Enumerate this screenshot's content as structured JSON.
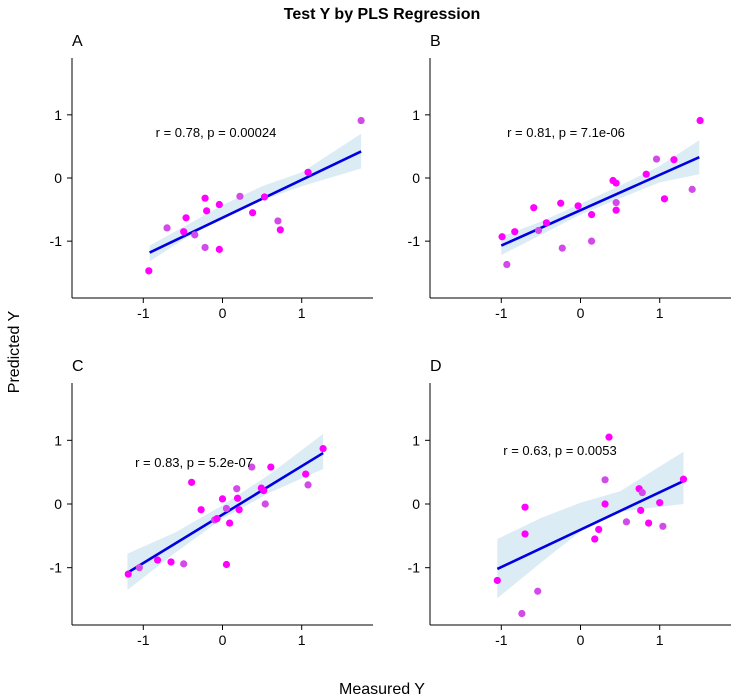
{
  "title": "Test Y by PLS Regression",
  "xlabel": "Measured Y",
  "ylabel": "Predicted Y",
  "colors": {
    "point": "#ff00ff",
    "point_alt": "#d24ae8",
    "fit_line": "#0000e0",
    "ci_band": "#cfe6f2"
  },
  "chart_data": [
    {
      "type": "scatter",
      "panel": "A",
      "annotation": "r = 0.78, p = 0.00024",
      "xlim": [
        -1.9,
        1.9
      ],
      "ylim": [
        -1.9,
        1.9
      ],
      "x_ticks": [
        -1,
        0,
        1
      ],
      "y_ticks": [
        -1,
        0,
        1
      ],
      "fit": {
        "x0": -0.92,
        "y0": -1.18,
        "x1": 1.75,
        "y1": 0.42
      },
      "ci": [
        [
          -0.92,
          -1.07,
          -1.32
        ],
        [
          -0.5,
          -0.78,
          -0.98
        ],
        [
          0.0,
          -0.43,
          -0.63
        ],
        [
          0.5,
          -0.13,
          -0.35
        ],
        [
          1.0,
          0.09,
          -0.13
        ],
        [
          1.75,
          0.7,
          0.15
        ]
      ],
      "points": [
        {
          "x": -0.93,
          "y": -1.47
        },
        {
          "x": -0.7,
          "y": -0.79
        },
        {
          "x": -0.49,
          "y": -0.85
        },
        {
          "x": -0.46,
          "y": -0.63
        },
        {
          "x": -0.35,
          "y": -0.9
        },
        {
          "x": -0.22,
          "y": -0.32
        },
        {
          "x": -0.2,
          "y": -0.52
        },
        {
          "x": -0.22,
          "y": -1.1
        },
        {
          "x": -0.04,
          "y": -0.42
        },
        {
          "x": -0.04,
          "y": -1.13
        },
        {
          "x": 0.22,
          "y": -0.29
        },
        {
          "x": 0.38,
          "y": -0.55
        },
        {
          "x": 0.53,
          "y": -0.3
        },
        {
          "x": 0.7,
          "y": -0.68
        },
        {
          "x": 0.73,
          "y": -0.82
        },
        {
          "x": 1.08,
          "y": 0.09
        },
        {
          "x": 1.75,
          "y": 0.91
        }
      ]
    },
    {
      "type": "scatter",
      "panel": "B",
      "annotation": "r = 0.81, p = 7.1e-06",
      "xlim": [
        -1.9,
        1.9
      ],
      "ylim": [
        -1.9,
        1.9
      ],
      "x_ticks": [
        -1,
        0,
        1
      ],
      "y_ticks": [
        -1,
        0,
        1
      ],
      "fit": {
        "x0": -1.0,
        "y0": -1.07,
        "x1": 1.5,
        "y1": 0.33
      },
      "ci": [
        [
          -1.0,
          -0.93,
          -1.22
        ],
        [
          -0.5,
          -0.69,
          -0.9
        ],
        [
          0.0,
          -0.41,
          -0.58
        ],
        [
          0.5,
          -0.12,
          -0.32
        ],
        [
          1.0,
          0.19,
          -0.07
        ],
        [
          1.5,
          0.6,
          0.06
        ]
      ],
      "points": [
        {
          "x": -0.99,
          "y": -0.93
        },
        {
          "x": -0.93,
          "y": -1.37
        },
        {
          "x": -0.83,
          "y": -0.85
        },
        {
          "x": -0.59,
          "y": -0.47
        },
        {
          "x": -0.53,
          "y": -0.83
        },
        {
          "x": -0.43,
          "y": -0.71
        },
        {
          "x": -0.25,
          "y": -0.4
        },
        {
          "x": -0.23,
          "y": -1.11
        },
        {
          "x": -0.03,
          "y": -0.44
        },
        {
          "x": 0.14,
          "y": -0.58
        },
        {
          "x": 0.14,
          "y": -1.0
        },
        {
          "x": 0.41,
          "y": -0.04
        },
        {
          "x": 0.45,
          "y": -0.08
        },
        {
          "x": 0.45,
          "y": -0.39
        },
        {
          "x": 0.45,
          "y": -0.51
        },
        {
          "x": 0.83,
          "y": 0.06
        },
        {
          "x": 0.96,
          "y": 0.3
        },
        {
          "x": 1.06,
          "y": -0.33
        },
        {
          "x": 1.18,
          "y": 0.29
        },
        {
          "x": 1.41,
          "y": -0.18
        },
        {
          "x": 1.51,
          "y": 0.91
        }
      ]
    },
    {
      "type": "scatter",
      "panel": "C",
      "annotation": "r = 0.83, p = 5.2e-07",
      "xlim": [
        -1.9,
        1.9
      ],
      "ylim": [
        -1.9,
        1.9
      ],
      "x_ticks": [
        -1,
        0,
        1
      ],
      "y_ticks": [
        -1,
        0,
        1
      ],
      "fit": {
        "x0": -1.2,
        "y0": -1.08,
        "x1": 1.27,
        "y1": 0.8
      },
      "ci": [
        [
          -1.2,
          -0.78,
          -1.35
        ],
        [
          -0.6,
          -0.45,
          -0.77
        ],
        [
          0.0,
          -0.02,
          -0.23
        ],
        [
          0.6,
          0.47,
          0.18
        ],
        [
          1.27,
          1.1,
          0.55
        ]
      ],
      "points": [
        {
          "x": -1.19,
          "y": -1.1
        },
        {
          "x": -1.05,
          "y": -1.0
        },
        {
          "x": -0.82,
          "y": -0.88
        },
        {
          "x": -0.65,
          "y": -0.91
        },
        {
          "x": -0.49,
          "y": -0.94
        },
        {
          "x": -0.39,
          "y": 0.34
        },
        {
          "x": -0.27,
          "y": -0.09
        },
        {
          "x": -0.1,
          "y": -0.25
        },
        {
          "x": -0.07,
          "y": -0.23
        },
        {
          "x": 0.0,
          "y": 0.08
        },
        {
          "x": 0.05,
          "y": -0.07
        },
        {
          "x": 0.05,
          "y": -0.95
        },
        {
          "x": 0.09,
          "y": -0.3
        },
        {
          "x": 0.18,
          "y": 0.24
        },
        {
          "x": 0.19,
          "y": 0.09
        },
        {
          "x": 0.21,
          "y": -0.09
        },
        {
          "x": 0.37,
          "y": 0.58
        },
        {
          "x": 0.49,
          "y": 0.25
        },
        {
          "x": 0.52,
          "y": 0.21
        },
        {
          "x": 0.54,
          "y": 0.0
        },
        {
          "x": 0.61,
          "y": 0.58
        },
        {
          "x": 1.05,
          "y": 0.47
        },
        {
          "x": 1.08,
          "y": 0.3
        },
        {
          "x": 1.27,
          "y": 0.87
        }
      ]
    },
    {
      "type": "scatter",
      "panel": "D",
      "annotation": "r = 0.63, p = 0.0053",
      "xlim": [
        -1.9,
        1.9
      ],
      "ylim": [
        -1.9,
        1.9
      ],
      "x_ticks": [
        -1,
        0,
        1
      ],
      "y_ticks": [
        -1,
        0,
        1
      ],
      "fit": {
        "x0": -1.05,
        "y0": -1.02,
        "x1": 1.3,
        "y1": 0.36
      },
      "ci": [
        [
          -1.05,
          -0.55,
          -1.48
        ],
        [
          -0.5,
          -0.22,
          -0.92
        ],
        [
          0.0,
          0.02,
          -0.43
        ],
        [
          0.5,
          0.2,
          -0.12
        ],
        [
          1.3,
          0.82,
          0.0
        ]
      ],
      "points": [
        {
          "x": -1.05,
          "y": -1.2
        },
        {
          "x": -0.74,
          "y": -1.72
        },
        {
          "x": -0.7,
          "y": -0.05
        },
        {
          "x": -0.7,
          "y": -0.47
        },
        {
          "x": -0.54,
          "y": -1.37
        },
        {
          "x": 0.18,
          "y": -0.55
        },
        {
          "x": 0.23,
          "y": -0.4
        },
        {
          "x": 0.31,
          "y": 0.38
        },
        {
          "x": 0.31,
          "y": 0.0
        },
        {
          "x": 0.36,
          "y": 1.05
        },
        {
          "x": 0.58,
          "y": -0.28
        },
        {
          "x": 0.74,
          "y": 0.24
        },
        {
          "x": 0.76,
          "y": -0.1
        },
        {
          "x": 0.78,
          "y": 0.18
        },
        {
          "x": 0.86,
          "y": -0.3
        },
        {
          "x": 1.0,
          "y": 0.02
        },
        {
          "x": 1.04,
          "y": -0.35
        },
        {
          "x": 1.3,
          "y": 0.39
        }
      ]
    }
  ]
}
